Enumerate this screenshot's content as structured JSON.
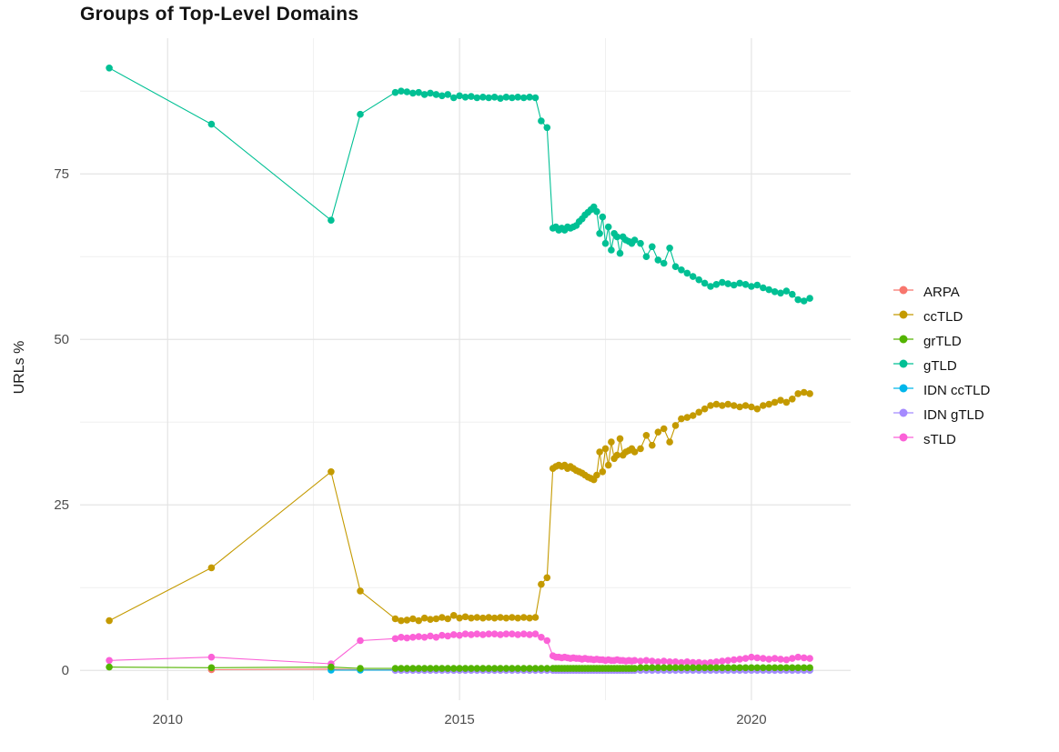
{
  "page": {
    "background": "#ffffff"
  },
  "chart_data": {
    "type": "line",
    "title": "Groups of Top-Level Domains",
    "xlabel": "",
    "ylabel": "URLs %",
    "legend_position": "right",
    "grid": {
      "major_color": "#e4e4e4",
      "minor_color": "#efefef",
      "panel_background": "#ffffff"
    },
    "x_domain": [
      2008.5,
      2021.7
    ],
    "y_domain": [
      -4.5,
      95.5
    ],
    "x_major_ticks": [
      2010,
      2015,
      2020
    ],
    "x_minor_ticks": [
      2012.5,
      2017.5
    ],
    "y_major_ticks": [
      0,
      25,
      50,
      75
    ],
    "y_minor_ticks": [
      12.5,
      37.5,
      62.5,
      87.5
    ],
    "draw_order": [
      "ARPA",
      "IDN ccTLD",
      "IDN gTLD",
      "ccTLD",
      "gTLD",
      "sTLD",
      "grTLD"
    ],
    "x": [
      2009.0,
      2010.75,
      2012.8,
      2013.3,
      2013.9,
      2014.0,
      2014.1,
      2014.2,
      2014.3,
      2014.4,
      2014.5,
      2014.6,
      2014.7,
      2014.8,
      2014.9,
      2015.0,
      2015.1,
      2015.2,
      2015.3,
      2015.4,
      2015.5,
      2015.6,
      2015.7,
      2015.8,
      2015.9,
      2016.0,
      2016.1,
      2016.2,
      2016.3,
      2016.4,
      2016.5,
      2016.6,
      2016.65,
      2016.7,
      2016.75,
      2016.8,
      2016.85,
      2016.9,
      2016.95,
      2017.0,
      2017.05,
      2017.1,
      2017.15,
      2017.2,
      2017.25,
      2017.3,
      2017.35,
      2017.4,
      2017.45,
      2017.5,
      2017.55,
      2017.6,
      2017.65,
      2017.7,
      2017.75,
      2017.8,
      2017.85,
      2017.9,
      2017.95,
      2018.0,
      2018.1,
      2018.2,
      2018.3,
      2018.4,
      2018.5,
      2018.6,
      2018.7,
      2018.8,
      2018.9,
      2019.0,
      2019.1,
      2019.2,
      2019.3,
      2019.4,
      2019.5,
      2019.6,
      2019.7,
      2019.8,
      2019.9,
      2020.0,
      2020.1,
      2020.2,
      2020.3,
      2020.4,
      2020.5,
      2020.6,
      2020.7,
      2020.8,
      2020.9,
      2021.0
    ],
    "series": [
      {
        "name": "ARPA",
        "color": "#F8766D",
        "values": [
          null,
          0.1,
          0.2,
          0.1,
          0.1,
          0.1,
          0.1,
          0.1,
          0.1,
          0.1,
          0.1,
          0.1,
          0.1,
          0.1,
          0.1,
          0.1,
          0.1,
          0.1,
          0.1,
          0.1,
          0.1,
          0.1,
          0.1,
          0.1,
          0.1,
          0.1,
          0.1,
          0.1,
          0.1,
          0.1,
          0.1,
          0.1,
          0.1,
          0.1,
          0.1,
          0.1,
          0.1,
          0.1,
          0.1,
          0.1,
          0.1,
          0.1,
          0.1,
          0.1,
          0.1,
          0.1,
          0.1,
          0.1,
          0.1,
          0.1,
          0.1,
          0.1,
          0.1,
          0.1,
          0.1,
          0.1,
          0.1,
          0.1,
          0.1,
          0.1,
          0.1,
          0.1,
          0.1,
          0.1,
          0.1,
          0.1,
          0.1,
          0.1,
          0.1,
          0.1,
          0.1,
          0.1,
          0.1,
          0.1,
          0.1,
          0.1,
          0.1,
          0.1,
          0.1,
          0.1,
          0.1,
          0.1,
          0.1,
          0.1,
          0.1,
          0.1,
          0.1,
          0.1,
          0.1,
          0.1
        ]
      },
      {
        "name": "ccTLD",
        "color": "#C49A00",
        "values": [
          7.5,
          15.5,
          30.0,
          12.0,
          7.8,
          7.5,
          7.6,
          7.8,
          7.5,
          7.9,
          7.7,
          7.8,
          8.0,
          7.8,
          8.3,
          7.9,
          8.1,
          7.9,
          8.0,
          7.9,
          8.0,
          7.9,
          8.0,
          7.9,
          8.0,
          7.9,
          8.0,
          7.9,
          8.0,
          13.0,
          14.0,
          30.5,
          30.8,
          31.0,
          30.8,
          31.0,
          30.5,
          30.8,
          30.5,
          30.2,
          30.0,
          29.8,
          29.5,
          29.2,
          29.0,
          28.8,
          29.5,
          33.0,
          30.0,
          33.5,
          31.0,
          34.5,
          32.0,
          32.5,
          35.0,
          32.5,
          33.0,
          33.2,
          33.5,
          33.0,
          33.5,
          35.5,
          34.0,
          36.0,
          36.5,
          34.5,
          37.0,
          38.0,
          38.2,
          38.5,
          39.0,
          39.5,
          40.0,
          40.2,
          40.0,
          40.2,
          40.0,
          39.8,
          40.0,
          39.8,
          39.5,
          40.0,
          40.2,
          40.5,
          40.8,
          40.5,
          41.0,
          41.8,
          42.0,
          41.8
        ]
      },
      {
        "name": "grTLD",
        "color": "#53B400",
        "values": [
          0.5,
          0.4,
          0.5,
          0.3,
          0.3,
          0.3,
          0.3,
          0.3,
          0.3,
          0.3,
          0.3,
          0.3,
          0.3,
          0.3,
          0.3,
          0.3,
          0.3,
          0.3,
          0.3,
          0.3,
          0.3,
          0.3,
          0.3,
          0.3,
          0.3,
          0.3,
          0.3,
          0.3,
          0.3,
          0.3,
          0.3,
          0.3,
          0.3,
          0.3,
          0.3,
          0.3,
          0.3,
          0.3,
          0.3,
          0.3,
          0.3,
          0.3,
          0.3,
          0.3,
          0.3,
          0.3,
          0.3,
          0.3,
          0.3,
          0.3,
          0.3,
          0.3,
          0.3,
          0.3,
          0.3,
          0.3,
          0.3,
          0.3,
          0.3,
          0.3,
          0.4,
          0.4,
          0.4,
          0.4,
          0.4,
          0.4,
          0.4,
          0.4,
          0.4,
          0.4,
          0.4,
          0.4,
          0.4,
          0.4,
          0.4,
          0.4,
          0.4,
          0.4,
          0.4,
          0.4,
          0.4,
          0.4,
          0.4,
          0.4,
          0.4,
          0.4,
          0.4,
          0.4,
          0.4,
          0.4
        ]
      },
      {
        "name": "gTLD",
        "color": "#00C094",
        "values": [
          91.0,
          82.5,
          68.0,
          84.0,
          87.3,
          87.5,
          87.4,
          87.2,
          87.3,
          87.0,
          87.2,
          87.0,
          86.8,
          87.0,
          86.5,
          86.8,
          86.6,
          86.7,
          86.5,
          86.6,
          86.5,
          86.6,
          86.4,
          86.6,
          86.5,
          86.6,
          86.5,
          86.6,
          86.5,
          83.0,
          82.0,
          66.8,
          67.0,
          66.5,
          66.8,
          66.5,
          67.0,
          66.8,
          67.0,
          67.2,
          67.8,
          68.2,
          68.8,
          69.2,
          69.6,
          70.0,
          69.3,
          66.0,
          68.5,
          64.5,
          67.0,
          63.5,
          66.0,
          65.5,
          63.0,
          65.5,
          65.0,
          64.8,
          64.5,
          65.0,
          64.5,
          62.5,
          64.0,
          62.0,
          61.5,
          63.8,
          61.0,
          60.5,
          60.0,
          59.5,
          59.0,
          58.5,
          58.0,
          58.3,
          58.6,
          58.4,
          58.2,
          58.5,
          58.3,
          58.0,
          58.2,
          57.8,
          57.5,
          57.2,
          57.0,
          57.3,
          56.8,
          56.0,
          55.8,
          56.2
        ]
      },
      {
        "name": "IDN ccTLD",
        "color": "#00B6EB",
        "values": [
          null,
          null,
          0.05,
          0.05,
          0.05,
          0.05,
          0.05,
          0.05,
          0.05,
          0.05,
          0.05,
          0.05,
          0.05,
          0.05,
          0.05,
          0.05,
          0.05,
          0.05,
          0.05,
          0.05,
          0.05,
          0.05,
          0.05,
          0.05,
          0.05,
          0.05,
          0.05,
          0.05,
          0.05,
          0.05,
          0.05,
          0.05,
          0.05,
          0.05,
          0.05,
          0.05,
          0.05,
          0.05,
          0.05,
          0.05,
          0.05,
          0.05,
          0.05,
          0.05,
          0.05,
          0.05,
          0.05,
          0.05,
          0.05,
          0.05,
          0.05,
          0.05,
          0.05,
          0.05,
          0.05,
          0.05,
          0.05,
          0.05,
          0.05,
          0.05,
          0.05,
          0.05,
          0.05,
          0.05,
          0.05,
          0.05,
          0.05,
          0.05,
          0.05,
          0.05,
          0.05,
          0.05,
          0.05,
          0.05,
          0.05,
          0.05,
          0.05,
          0.05,
          0.05,
          0.05,
          0.05,
          0.05,
          0.05,
          0.05,
          0.05,
          0.05,
          0.05,
          0.05,
          0.05,
          0.05
        ]
      },
      {
        "name": "IDN gTLD",
        "color": "#A58AFF",
        "values": [
          null,
          null,
          null,
          null,
          0,
          0,
          0,
          0,
          0,
          0,
          0,
          0,
          0,
          0,
          0,
          0,
          0,
          0,
          0,
          0,
          0,
          0,
          0,
          0,
          0,
          0,
          0,
          0,
          0,
          0,
          0,
          0,
          0,
          0,
          0,
          0,
          0,
          0,
          0,
          0,
          0,
          0,
          0,
          0,
          0,
          0,
          0,
          0,
          0,
          0,
          0,
          0,
          0,
          0,
          0,
          0,
          0,
          0,
          0,
          0,
          0,
          0,
          0,
          0,
          0,
          0,
          0,
          0,
          0,
          0,
          0,
          0,
          0,
          0,
          0,
          0,
          0,
          0,
          0,
          0,
          0,
          0,
          0,
          0,
          0,
          0,
          0,
          0,
          0,
          0
        ]
      },
      {
        "name": "sTLD",
        "color": "#FB61D7",
        "values": [
          1.5,
          2.0,
          1.0,
          4.5,
          4.8,
          5.0,
          4.9,
          5.0,
          5.1,
          5.0,
          5.2,
          5.0,
          5.3,
          5.2,
          5.4,
          5.3,
          5.5,
          5.4,
          5.5,
          5.4,
          5.5,
          5.5,
          5.4,
          5.5,
          5.5,
          5.4,
          5.5,
          5.4,
          5.5,
          5.0,
          4.5,
          2.2,
          2.0,
          2.0,
          1.9,
          2.0,
          1.9,
          1.8,
          1.9,
          1.8,
          1.8,
          1.7,
          1.8,
          1.7,
          1.7,
          1.6,
          1.7,
          1.6,
          1.6,
          1.5,
          1.6,
          1.5,
          1.5,
          1.6,
          1.5,
          1.5,
          1.4,
          1.5,
          1.4,
          1.5,
          1.4,
          1.5,
          1.4,
          1.3,
          1.4,
          1.3,
          1.3,
          1.2,
          1.3,
          1.2,
          1.2,
          1.1,
          1.2,
          1.3,
          1.4,
          1.5,
          1.6,
          1.7,
          1.8,
          2.0,
          1.9,
          1.8,
          1.7,
          1.8,
          1.7,
          1.6,
          1.8,
          2.0,
          1.9,
          1.8
        ]
      }
    ]
  }
}
